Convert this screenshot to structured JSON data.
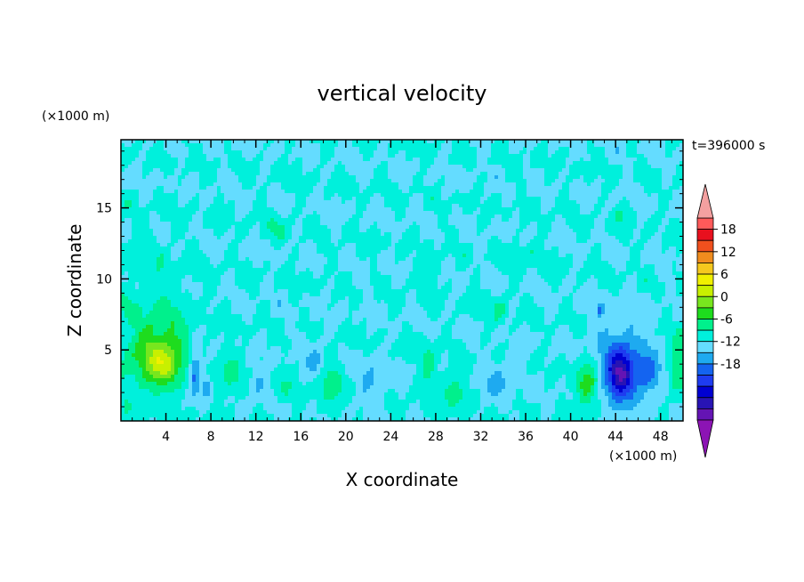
{
  "chart_data": {
    "type": "heatmap",
    "title": "vertical velocity",
    "xlabel": "X coordinate",
    "ylabel": "Z coordinate",
    "x_unit": "(×1000 m)",
    "y_unit": "(×1000 m)",
    "time_label": "t=396000 s",
    "xlim": [
      0,
      50
    ],
    "ylim": [
      0,
      19.8
    ],
    "x_ticks": [
      4,
      8,
      12,
      16,
      20,
      24,
      28,
      32,
      36,
      40,
      44,
      48
    ],
    "y_ticks": [
      5,
      10,
      15
    ],
    "colorbar": {
      "labels": [
        "18",
        "12",
        "6",
        "0",
        "-6",
        "-12",
        "-18"
      ],
      "min": -21,
      "max": 21,
      "step": 3,
      "colors_high_to_low": [
        "#ff5a5a",
        "#e8101e",
        "#f0501e",
        "#f08c1e",
        "#f5c81e",
        "#f0f000",
        "#c8f000",
        "#78e61e",
        "#1edc1e",
        "#00f08c",
        "#00f0dc",
        "#64dcff",
        "#1eaaf0",
        "#1464f0",
        "#1e3cf0",
        "#0000d2",
        "#2814b4",
        "#6414b4"
      ],
      "over_color": "#f4a0a0",
      "under_color": "#8c14b4"
    },
    "background_color": "#00f08c",
    "features": [
      {
        "x": 3.4,
        "z": 4.6,
        "sx": 2.5,
        "sz": 2.4,
        "w": 10.5
      },
      {
        "x": 3.8,
        "z": 3.8,
        "sx": 1.1,
        "sz": 1.2,
        "w": 4.5
      },
      {
        "x": 2.5,
        "z": 9.0,
        "sx": 4.5,
        "sz": 4.0,
        "w": 1.8
      },
      {
        "x": 0.2,
        "z": 2.0,
        "sx": 1.0,
        "sz": 2.0,
        "w": 2.0
      },
      {
        "x": 6.6,
        "z": 3.6,
        "sx": 0.55,
        "sz": 1.6,
        "w": -9
      },
      {
        "x": 7.6,
        "z": 2.4,
        "sx": 0.4,
        "sz": 0.8,
        "w": -6
      },
      {
        "x": 9.7,
        "z": 3.2,
        "sx": 1.0,
        "sz": 1.4,
        "w": 4.5
      },
      {
        "x": 12.2,
        "z": 2.6,
        "sx": 0.8,
        "sz": 1.0,
        "w": -3.5
      },
      {
        "x": 14.6,
        "z": 2.2,
        "sx": 0.9,
        "sz": 1.0,
        "w": 3.0
      },
      {
        "x": 17.3,
        "z": 4.0,
        "sx": 0.9,
        "sz": 1.6,
        "w": -4
      },
      {
        "x": 18.5,
        "z": 2.6,
        "sx": 1.3,
        "sz": 1.6,
        "w": 5.0
      },
      {
        "x": 22.3,
        "z": 2.8,
        "sx": 1.2,
        "sz": 1.6,
        "w": -3.5
      },
      {
        "x": 27.3,
        "z": 3.8,
        "sx": 0.8,
        "sz": 1.6,
        "w": 4.5
      },
      {
        "x": 29.6,
        "z": 2.0,
        "sx": 1.0,
        "sz": 1.2,
        "w": 5.5
      },
      {
        "x": 33.5,
        "z": 2.8,
        "sx": 1.4,
        "sz": 1.4,
        "w": -3.5
      },
      {
        "x": 33.7,
        "z": 7.8,
        "sx": 0.7,
        "sz": 1.2,
        "w": 3.0
      },
      {
        "x": 41.5,
        "z": 2.6,
        "sx": 1.0,
        "sz": 1.6,
        "w": 9.0
      },
      {
        "x": 44.7,
        "z": 4.0,
        "sx": 2.5,
        "sz": 2.8,
        "w": -7
      },
      {
        "x": 44.4,
        "z": 3.2,
        "sx": 1.1,
        "sz": 1.5,
        "w": -13
      },
      {
        "x": 42.7,
        "z": 7.8,
        "sx": 0.4,
        "sz": 0.5,
        "w": -7
      },
      {
        "x": 47.0,
        "z": 3.2,
        "sx": 0.9,
        "sz": 1.2,
        "w": -6
      },
      {
        "x": 49.5,
        "z": 4.0,
        "sx": 0.8,
        "sz": 2.2,
        "w": 5.5
      },
      {
        "x": 44.6,
        "z": 14.6,
        "sx": 0.7,
        "sz": 0.8,
        "w": 3.0
      },
      {
        "x": 27.5,
        "z": 10.5,
        "sx": 1.2,
        "sz": 1.0,
        "w": 2.5
      },
      {
        "x": 14.0,
        "z": 13.5,
        "sx": 1.5,
        "sz": 1.0,
        "w": 2.0
      },
      {
        "x": 36.0,
        "z": 12.0,
        "sx": 1.5,
        "sz": 1.0,
        "w": 2.0
      }
    ]
  }
}
